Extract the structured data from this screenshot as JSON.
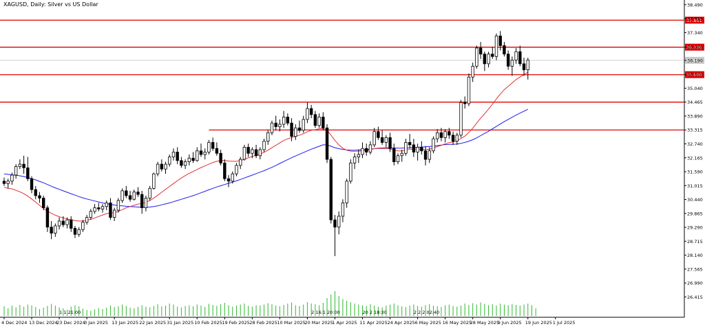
{
  "chart_data": {
    "type": "candlestick",
    "title": "XAGUSD, Daily:  Silver vs US Dollar",
    "y_ticks": [
      "38.490",
      "37.915",
      "37.340",
      "36.736",
      "36.190",
      "35.600",
      "35.040",
      "34.465",
      "33.890",
      "33.315",
      "32.740",
      "32.165",
      "31.590",
      "31.015",
      "30.440",
      "29.865",
      "29.290",
      "28.715",
      "28.140",
      "27.565",
      "26.990",
      "26.415"
    ],
    "ylim": [
      26.0,
      38.6
    ],
    "x_labels": [
      {
        "i": 0,
        "label": "4 Dec 2024"
      },
      {
        "i": 7,
        "label": "13 Dec 2024"
      },
      {
        "i": 14,
        "label": "23 Dec 2024"
      },
      {
        "i": 21,
        "label": "3 Jan 2025"
      },
      {
        "i": 28,
        "label": "13 Jan 2025"
      },
      {
        "i": 35,
        "label": "22 Jan 2025"
      },
      {
        "i": 42,
        "label": "31 Jan 2025"
      },
      {
        "i": 49,
        "label": "10 Feb 2025"
      },
      {
        "i": 56,
        "label": "19 Feb 2025"
      },
      {
        "i": 63,
        "label": "28 Feb 2025"
      },
      {
        "i": 70,
        "label": "10 Mar 2025"
      },
      {
        "i": 77,
        "label": "20 Mar 2025"
      },
      {
        "i": 84,
        "label": "1 Apr 2025"
      },
      {
        "i": 91,
        "label": "11 Apr 2025"
      },
      {
        "i": 98,
        "label": "24 Apr 2025"
      },
      {
        "i": 105,
        "label": "6 May 2025"
      },
      {
        "i": 112,
        "label": "16 May 2025"
      },
      {
        "i": 119,
        "label": "28 May 2025"
      },
      {
        "i": 126,
        "label": "9 Jun 2025"
      },
      {
        "i": 133,
        "label": "19 Jun 2025"
      },
      {
        "i": 140,
        "label": "1 Jul 2025"
      }
    ],
    "horizontal_levels": [
      {
        "value": 37.851,
        "label": "37.851",
        "from_index": 0
      },
      {
        "value": 36.736,
        "label": "36.736",
        "from_index": 0
      },
      {
        "value": 35.6,
        "label": "35.600",
        "from_index": 0
      },
      {
        "value": 34.465,
        "label": "",
        "from_index": 0
      },
      {
        "value": 33.315,
        "label": "",
        "from_index": 52
      }
    ],
    "current_price": {
      "value": 36.192,
      "label": "36.192"
    },
    "colors": {
      "level": "#e00000",
      "ma_fast": "#e03030",
      "ma_slow": "#1a1aee",
      "candle": "#000000",
      "volume": "#2eb82e",
      "grid": "#c0c0c0"
    },
    "event_tags": [
      {
        "i": 14,
        "text": "1 1 21:00"
      },
      {
        "i": 78,
        "text": "2 16:1 20:00"
      },
      {
        "i": 91,
        "text": "20 2 18:30"
      },
      {
        "i": 104,
        "text": "2 2 2 02:40"
      }
    ],
    "candles": [
      [
        31.2,
        31.35,
        31.0,
        31.1
      ],
      [
        31.1,
        31.3,
        30.9,
        31.2
      ],
      [
        31.2,
        31.55,
        31.05,
        31.45
      ],
      [
        31.45,
        31.9,
        31.3,
        31.8
      ],
      [
        31.8,
        32.1,
        31.7,
        31.9
      ],
      [
        31.9,
        32.25,
        31.5,
        31.75
      ],
      [
        31.75,
        32.2,
        31.2,
        31.3
      ],
      [
        31.3,
        31.4,
        30.7,
        30.85
      ],
      [
        30.85,
        31.0,
        30.45,
        30.6
      ],
      [
        30.6,
        30.75,
        30.3,
        30.5
      ],
      [
        30.5,
        30.6,
        30.0,
        30.1
      ],
      [
        30.1,
        30.2,
        29.1,
        29.3
      ],
      [
        29.3,
        29.55,
        28.8,
        29.05
      ],
      [
        29.05,
        29.45,
        28.9,
        29.35
      ],
      [
        29.35,
        29.7,
        29.2,
        29.55
      ],
      [
        29.55,
        29.75,
        29.3,
        29.4
      ],
      [
        29.4,
        29.7,
        29.25,
        29.6
      ],
      [
        29.6,
        29.75,
        29.1,
        29.25
      ],
      [
        29.25,
        29.35,
        28.85,
        29.0
      ],
      [
        29.0,
        29.3,
        28.9,
        29.2
      ],
      [
        29.2,
        29.6,
        29.1,
        29.5
      ],
      [
        29.5,
        29.8,
        29.4,
        29.7
      ],
      [
        29.7,
        30.05,
        29.6,
        29.95
      ],
      [
        29.95,
        30.25,
        29.85,
        30.1
      ],
      [
        30.1,
        30.3,
        29.95,
        30.05
      ],
      [
        30.05,
        30.25,
        29.9,
        30.15
      ],
      [
        30.15,
        30.4,
        30.0,
        30.3
      ],
      [
        30.3,
        30.5,
        29.6,
        29.7
      ],
      [
        29.7,
        30.1,
        29.55,
        30.0
      ],
      [
        30.0,
        30.5,
        29.9,
        30.4
      ],
      [
        30.4,
        30.9,
        30.3,
        30.8
      ],
      [
        30.8,
        31.0,
        30.5,
        30.6
      ],
      [
        30.6,
        30.8,
        30.35,
        30.45
      ],
      [
        30.45,
        30.85,
        30.4,
        30.75
      ],
      [
        30.75,
        30.95,
        30.55,
        30.65
      ],
      [
        30.65,
        30.8,
        29.85,
        30.1
      ],
      [
        30.1,
        30.6,
        29.95,
        30.5
      ],
      [
        30.5,
        31.0,
        30.4,
        30.9
      ],
      [
        30.9,
        31.55,
        30.85,
        31.5
      ],
      [
        31.5,
        32.0,
        31.4,
        31.9
      ],
      [
        31.9,
        32.1,
        31.6,
        31.7
      ],
      [
        31.7,
        32.0,
        31.5,
        31.9
      ],
      [
        31.9,
        32.3,
        31.8,
        32.2
      ],
      [
        32.2,
        32.55,
        32.05,
        32.4
      ],
      [
        32.4,
        32.6,
        31.9,
        32.05
      ],
      [
        32.05,
        32.2,
        31.75,
        31.85
      ],
      [
        31.85,
        32.1,
        31.7,
        32.0
      ],
      [
        32.0,
        32.3,
        31.85,
        32.15
      ],
      [
        32.15,
        32.4,
        31.95,
        32.05
      ],
      [
        32.05,
        32.6,
        32.0,
        32.45
      ],
      [
        32.45,
        32.75,
        32.2,
        32.3
      ],
      [
        32.3,
        32.55,
        32.1,
        32.4
      ],
      [
        32.4,
        32.9,
        32.3,
        32.8
      ],
      [
        32.8,
        33.0,
        32.45,
        32.55
      ],
      [
        32.55,
        32.8,
        32.25,
        32.35
      ],
      [
        32.35,
        32.5,
        31.85,
        31.95
      ],
      [
        31.95,
        32.1,
        31.2,
        31.3
      ],
      [
        31.3,
        31.45,
        30.95,
        31.2
      ],
      [
        31.2,
        31.6,
        31.1,
        31.5
      ],
      [
        31.5,
        31.95,
        31.4,
        31.85
      ],
      [
        31.85,
        32.2,
        31.7,
        32.1
      ],
      [
        32.1,
        32.7,
        32.05,
        32.6
      ],
      [
        32.6,
        32.75,
        32.2,
        32.35
      ],
      [
        32.35,
        32.6,
        32.15,
        32.5
      ],
      [
        32.5,
        32.7,
        32.15,
        32.25
      ],
      [
        32.25,
        32.6,
        32.1,
        32.5
      ],
      [
        32.5,
        32.95,
        32.4,
        32.85
      ],
      [
        32.85,
        33.3,
        32.7,
        33.2
      ],
      [
        33.2,
        33.7,
        33.1,
        33.6
      ],
      [
        33.6,
        33.9,
        33.3,
        33.45
      ],
      [
        33.45,
        33.75,
        33.25,
        33.55
      ],
      [
        33.55,
        34.1,
        33.4,
        33.85
      ],
      [
        33.85,
        34.0,
        33.5,
        33.6
      ],
      [
        33.6,
        33.8,
        32.85,
        33.05
      ],
      [
        33.05,
        33.55,
        32.9,
        33.4
      ],
      [
        33.4,
        33.7,
        33.2,
        33.3
      ],
      [
        33.3,
        33.9,
        33.2,
        33.75
      ],
      [
        33.75,
        34.45,
        33.6,
        34.2
      ],
      [
        34.2,
        34.35,
        33.8,
        33.95
      ],
      [
        33.95,
        34.1,
        33.4,
        33.5
      ],
      [
        33.5,
        34.0,
        33.4,
        33.85
      ],
      [
        33.85,
        34.05,
        33.3,
        33.4
      ],
      [
        33.4,
        33.55,
        31.95,
        32.1
      ],
      [
        32.1,
        32.2,
        29.45,
        29.6
      ],
      [
        29.6,
        29.8,
        28.1,
        29.3
      ],
      [
        29.3,
        29.95,
        29.0,
        29.75
      ],
      [
        29.75,
        30.45,
        29.5,
        30.3
      ],
      [
        30.3,
        31.3,
        30.1,
        31.2
      ],
      [
        31.2,
        32.1,
        31.1,
        31.95
      ],
      [
        31.95,
        32.35,
        31.7,
        32.2
      ],
      [
        32.2,
        32.5,
        31.95,
        32.3
      ],
      [
        32.3,
        32.8,
        32.15,
        32.55
      ],
      [
        32.55,
        32.75,
        32.25,
        32.4
      ],
      [
        32.4,
        32.85,
        32.3,
        32.7
      ],
      [
        32.7,
        33.4,
        32.6,
        33.25
      ],
      [
        33.25,
        33.45,
        32.9,
        33.0
      ],
      [
        33.0,
        33.3,
        32.7,
        32.8
      ],
      [
        32.8,
        33.1,
        32.6,
        33.0
      ],
      [
        33.0,
        33.2,
        32.4,
        32.55
      ],
      [
        32.55,
        32.75,
        31.85,
        32.0
      ],
      [
        32.0,
        32.35,
        31.9,
        32.25
      ],
      [
        32.25,
        32.5,
        32.0,
        32.35
      ],
      [
        32.35,
        32.95,
        32.25,
        32.8
      ],
      [
        32.8,
        33.15,
        32.55,
        32.7
      ],
      [
        32.7,
        32.95,
        32.2,
        32.4
      ],
      [
        32.4,
        32.75,
        32.05,
        32.6
      ],
      [
        32.6,
        32.85,
        32.3,
        32.45
      ],
      [
        32.45,
        32.65,
        31.85,
        32.1
      ],
      [
        32.1,
        32.6,
        31.95,
        32.45
      ],
      [
        32.45,
        33.05,
        32.35,
        32.95
      ],
      [
        32.95,
        33.35,
        32.8,
        33.2
      ],
      [
        33.2,
        33.4,
        32.85,
        33.0
      ],
      [
        33.0,
        33.35,
        32.8,
        33.25
      ],
      [
        33.25,
        33.4,
        32.95,
        33.1
      ],
      [
        33.1,
        33.25,
        32.7,
        32.85
      ],
      [
        32.85,
        33.2,
        32.7,
        33.1
      ],
      [
        33.1,
        34.55,
        33.0,
        34.45
      ],
      [
        34.45,
        34.7,
        34.2,
        34.4
      ],
      [
        34.4,
        35.65,
        34.3,
        35.5
      ],
      [
        35.5,
        36.1,
        35.3,
        35.95
      ],
      [
        35.95,
        36.8,
        35.85,
        36.7
      ],
      [
        36.7,
        36.95,
        36.25,
        36.45
      ],
      [
        36.45,
        36.55,
        35.75,
        36.05
      ],
      [
        36.05,
        36.55,
        35.9,
        36.45
      ],
      [
        36.45,
        36.75,
        36.25,
        36.35
      ],
      [
        36.35,
        37.3,
        36.2,
        37.2
      ],
      [
        37.2,
        37.4,
        36.6,
        36.8
      ],
      [
        36.8,
        36.95,
        36.35,
        36.45
      ],
      [
        36.45,
        36.6,
        35.8,
        35.95
      ],
      [
        35.95,
        36.35,
        35.55,
        36.2
      ],
      [
        36.2,
        36.7,
        36.05,
        36.55
      ],
      [
        36.55,
        36.8,
        35.95,
        36.05
      ],
      [
        36.05,
        36.3,
        35.55,
        35.8
      ],
      [
        35.8,
        36.3,
        35.4,
        36.2
      ]
    ],
    "ma_fast": [
      30.95,
      30.9,
      30.88,
      30.82,
      30.76,
      30.68,
      30.58,
      30.46,
      30.33,
      30.2,
      30.07,
      29.96,
      29.87,
      29.79,
      29.73,
      29.68,
      29.64,
      29.6,
      29.57,
      29.55,
      29.55,
      29.58,
      29.62,
      29.68,
      29.74,
      29.8,
      29.86,
      29.88,
      29.9,
      29.95,
      30.02,
      30.1,
      30.15,
      30.2,
      30.25,
      30.28,
      30.33,
      30.4,
      30.5,
      30.62,
      30.74,
      30.86,
      30.98,
      31.1,
      31.22,
      31.33,
      31.43,
      31.52,
      31.6,
      31.68,
      31.76,
      31.83,
      31.9,
      31.97,
      32.02,
      32.05,
      32.05,
      32.03,
      32.02,
      32.02,
      32.05,
      32.1,
      32.16,
      32.22,
      32.27,
      32.32,
      32.39,
      32.48,
      32.58,
      32.68,
      32.78,
      32.88,
      32.95,
      33.0,
      33.05,
      33.1,
      33.16,
      33.24,
      33.3,
      33.33,
      33.36,
      33.38,
      33.3,
      33.1,
      32.88,
      32.7,
      32.56,
      32.48,
      32.44,
      32.43,
      32.44,
      32.46,
      32.48,
      32.5,
      32.54,
      32.55,
      32.55,
      32.55,
      32.53,
      32.48,
      32.45,
      32.45,
      32.48,
      32.52,
      32.52,
      32.52,
      32.52,
      32.5,
      32.52,
      32.57,
      32.63,
      32.68,
      32.74,
      32.79,
      32.82,
      32.86,
      32.96,
      33.06,
      33.21,
      33.39,
      33.6,
      33.8,
      33.98,
      34.18,
      34.38,
      34.6,
      34.8,
      34.98,
      35.12,
      35.26,
      35.4,
      35.5,
      35.6,
      35.7
    ],
    "ma_slow": [
      31.5,
      31.48,
      31.46,
      31.44,
      31.42,
      31.39,
      31.35,
      31.3,
      31.25,
      31.19,
      31.13,
      31.06,
      30.99,
      30.92,
      30.86,
      30.8,
      30.74,
      30.68,
      30.62,
      30.56,
      30.51,
      30.46,
      30.42,
      30.38,
      30.34,
      30.3,
      30.27,
      30.24,
      30.21,
      30.19,
      30.18,
      30.16,
      30.15,
      30.14,
      30.13,
      30.12,
      30.12,
      30.13,
      30.15,
      30.18,
      30.22,
      30.26,
      30.3,
      30.35,
      30.4,
      30.45,
      30.5,
      30.55,
      30.6,
      30.66,
      30.72,
      30.78,
      30.84,
      30.9,
      30.96,
      31.01,
      31.06,
      31.11,
      31.16,
      31.21,
      31.27,
      31.33,
      31.39,
      31.45,
      31.51,
      31.57,
      31.63,
      31.7,
      31.77,
      31.85,
      31.93,
      32.01,
      32.09,
      32.17,
      32.24,
      32.31,
      32.38,
      32.45,
      32.52,
      32.58,
      32.64,
      32.7,
      32.7,
      32.64,
      32.58,
      32.54,
      32.51,
      32.49,
      32.48,
      32.48,
      32.49,
      32.5,
      32.51,
      32.52,
      32.54,
      32.56,
      32.57,
      32.58,
      32.58,
      32.57,
      32.56,
      32.56,
      32.57,
      32.58,
      32.59,
      32.6,
      32.61,
      32.62,
      32.63,
      32.65,
      32.67,
      32.69,
      32.71,
      32.72,
      32.72,
      32.73,
      32.76,
      32.8,
      32.85,
      32.91,
      32.99,
      33.08,
      33.17,
      33.26,
      33.36,
      33.46,
      33.56,
      33.66,
      33.75,
      33.84,
      33.93,
      34.01,
      34.09,
      34.17
    ],
    "volume": [
      0.28,
      0.22,
      0.3,
      0.25,
      0.32,
      0.27,
      0.33,
      0.31,
      0.26,
      0.2,
      0.24,
      0.29,
      0.35,
      0.3,
      0.25,
      0.22,
      0.18,
      0.27,
      0.31,
      0.28,
      0.21,
      0.17,
      0.15,
      0.19,
      0.23,
      0.2,
      0.24,
      0.3,
      0.26,
      0.28,
      0.33,
      0.29,
      0.24,
      0.22,
      0.26,
      0.31,
      0.27,
      0.25,
      0.29,
      0.34,
      0.28,
      0.3,
      0.36,
      0.33,
      0.27,
      0.25,
      0.29,
      0.31,
      0.28,
      0.33,
      0.3,
      0.26,
      0.35,
      0.32,
      0.29,
      0.34,
      0.38,
      0.31,
      0.27,
      0.3,
      0.33,
      0.36,
      0.29,
      0.27,
      0.31,
      0.3,
      0.33,
      0.37,
      0.34,
      0.3,
      0.28,
      0.32,
      0.36,
      0.39,
      0.31,
      0.29,
      0.33,
      0.4,
      0.36,
      0.34,
      0.31,
      0.38,
      0.52,
      0.62,
      0.72,
      0.58,
      0.49,
      0.44,
      0.4,
      0.36,
      0.33,
      0.31,
      0.29,
      0.34,
      0.3,
      0.27,
      0.25,
      0.3,
      0.33,
      0.36,
      0.31,
      0.28,
      0.26,
      0.3,
      0.33,
      0.29,
      0.27,
      0.31,
      0.34,
      0.3,
      0.28,
      0.26,
      0.31,
      0.33,
      0.29,
      0.27,
      0.3,
      0.36,
      0.32,
      0.37,
      0.33,
      0.39,
      0.35,
      0.31,
      0.34,
      0.3,
      0.36,
      0.33,
      0.31,
      0.35,
      0.32,
      0.3,
      0.33,
      0.36,
      0.31,
      0.22
    ]
  }
}
